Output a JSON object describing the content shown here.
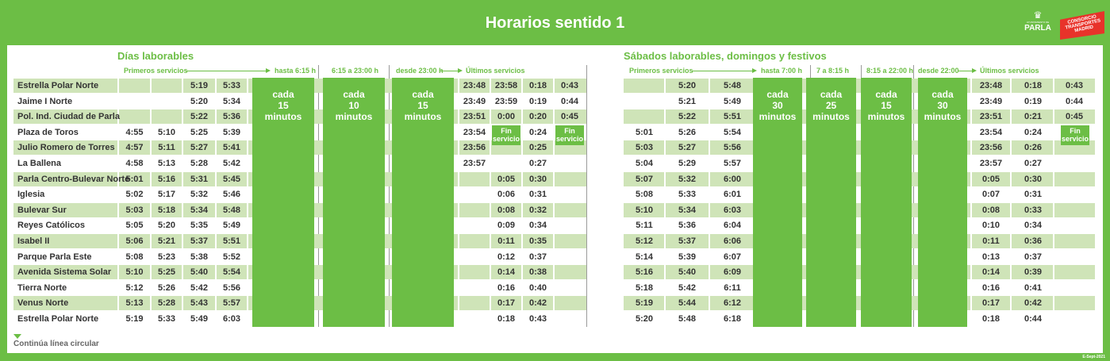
{
  "title": "Horarios sentido 1",
  "logos": {
    "parla_sub": "AYUNTAMIENTO DE",
    "parla_name": "PARLA",
    "ct_text": "CONSORCIO TRANSPORTES MADRID"
  },
  "stops": [
    "Estrella Polar Norte",
    "Jaime I Norte",
    "Pol. Ind. Ciudad de Parla",
    "Plaza de Toros",
    "Julio Romero de Torres",
    "La Ballena",
    "Parla Centro-Bulevar Norte",
    "Iglesia",
    "Bulevar Sur",
    "Reyes Católicos",
    "Isabel II",
    "Parque Parla Este",
    "Avenida Sistema Solar",
    "Tierra Norte",
    "Venus Norte",
    "Estrella Polar Norte"
  ],
  "weekday": {
    "heading": "Días laborables",
    "headers": {
      "first": "Primeros servicios",
      "until": "hasta 6:15 h",
      "mid": "6:15 a 23:00 h",
      "from": "desde 23:00 h",
      "last": "Últimos servicios"
    },
    "freq": [
      {
        "l1": "cada",
        "l2": "15",
        "l3": "minutos"
      },
      {
        "l1": "cada",
        "l2": "10",
        "l3": "minutos"
      },
      {
        "l1": "cada",
        "l2": "15",
        "l3": "minutos"
      }
    ],
    "first": [
      [
        "",
        "",
        "5:19",
        "5:33"
      ],
      [
        "",
        "",
        "5:20",
        "5:34"
      ],
      [
        "",
        "",
        "5:22",
        "5:36"
      ],
      [
        "4:55",
        "5:10",
        "5:25",
        "5:39"
      ],
      [
        "4:57",
        "5:11",
        "5:27",
        "5:41"
      ],
      [
        "4:58",
        "5:13",
        "5:28",
        "5:42"
      ],
      [
        "5:01",
        "5:16",
        "5:31",
        "5:45"
      ],
      [
        "5:02",
        "5:17",
        "5:32",
        "5:46"
      ],
      [
        "5:03",
        "5:18",
        "5:34",
        "5:48"
      ],
      [
        "5:05",
        "5:20",
        "5:35",
        "5:49"
      ],
      [
        "5:06",
        "5:21",
        "5:37",
        "5:51"
      ],
      [
        "5:08",
        "5:23",
        "5:38",
        "5:52"
      ],
      [
        "5:10",
        "5:25",
        "5:40",
        "5:54"
      ],
      [
        "5:12",
        "5:26",
        "5:42",
        "5:56"
      ],
      [
        "5:13",
        "5:28",
        "5:43",
        "5:57"
      ],
      [
        "5:19",
        "5:33",
        "5:49",
        "6:03"
      ]
    ],
    "last": [
      [
        "23:48",
        "23:58",
        "0:18",
        "0:43"
      ],
      [
        "23:49",
        "23:59",
        "0:19",
        "0:44"
      ],
      [
        "23:51",
        "0:00",
        "0:20",
        "0:45"
      ],
      [
        "23:54",
        "",
        "0:24",
        ""
      ],
      [
        "23:56",
        "",
        "0:25",
        ""
      ],
      [
        "23:57",
        "",
        "0:27",
        ""
      ],
      [
        "",
        "0:05",
        "0:30",
        ""
      ],
      [
        "",
        "0:06",
        "0:31",
        ""
      ],
      [
        "",
        "0:08",
        "0:32",
        ""
      ],
      [
        "",
        "0:09",
        "0:34",
        ""
      ],
      [
        "",
        "0:11",
        "0:35",
        ""
      ],
      [
        "",
        "0:12",
        "0:37",
        ""
      ],
      [
        "",
        "0:14",
        "0:38",
        ""
      ],
      [
        "",
        "0:16",
        "0:40",
        ""
      ],
      [
        "",
        "0:17",
        "0:42",
        ""
      ],
      [
        "",
        "0:18",
        "0:43",
        ""
      ]
    ],
    "fin": {
      "l1": "Fin",
      "l2": "servicio"
    }
  },
  "weekend": {
    "heading": "Sábados laborables, domingos y festivos",
    "headers": {
      "first": "Primeros servicios",
      "until": "hasta 7:00 h",
      "h2": "7 a 8:15 h",
      "h3": "8:15 a 22:00 h",
      "from": "desde 22:00",
      "last": "Últimos servicios"
    },
    "freq": [
      {
        "l1": "cada",
        "l2": "30",
        "l3": "minutos"
      },
      {
        "l1": "cada",
        "l2": "25",
        "l3": "minutos"
      },
      {
        "l1": "cada",
        "l2": "15",
        "l3": "minutos"
      },
      {
        "l1": "cada",
        "l2": "30",
        "l3": "minutos"
      }
    ],
    "first": [
      [
        "",
        "5:20",
        "5:48"
      ],
      [
        "",
        "5:21",
        "5:49"
      ],
      [
        "",
        "5:22",
        "5:51"
      ],
      [
        "5:01",
        "5:26",
        "5:54"
      ],
      [
        "5:03",
        "5:27",
        "5:56"
      ],
      [
        "5:04",
        "5:29",
        "5:57"
      ],
      [
        "5:07",
        "5:32",
        "6:00"
      ],
      [
        "5:08",
        "5:33",
        "6:01"
      ],
      [
        "5:10",
        "5:34",
        "6:03"
      ],
      [
        "5:11",
        "5:36",
        "6:04"
      ],
      [
        "5:12",
        "5:37",
        "6:06"
      ],
      [
        "5:14",
        "5:39",
        "6:07"
      ],
      [
        "5:16",
        "5:40",
        "6:09"
      ],
      [
        "5:18",
        "5:42",
        "6:11"
      ],
      [
        "5:19",
        "5:44",
        "6:12"
      ],
      [
        "5:20",
        "5:48",
        "6:18"
      ]
    ],
    "last": [
      [
        "23:48",
        "0:18",
        "0:43"
      ],
      [
        "23:49",
        "0:19",
        "0:44"
      ],
      [
        "23:51",
        "0:21",
        "0:45"
      ],
      [
        "23:54",
        "0:24",
        ""
      ],
      [
        "23:56",
        "0:26",
        ""
      ],
      [
        "23:57",
        "0:27",
        ""
      ],
      [
        "0:05",
        "0:30",
        ""
      ],
      [
        "0:07",
        "0:31",
        ""
      ],
      [
        "0:08",
        "0:33",
        ""
      ],
      [
        "0:10",
        "0:34",
        ""
      ],
      [
        "0:11",
        "0:36",
        ""
      ],
      [
        "0:13",
        "0:37",
        ""
      ],
      [
        "0:14",
        "0:39",
        ""
      ],
      [
        "0:16",
        "0:41",
        ""
      ],
      [
        "0:17",
        "0:42",
        ""
      ],
      [
        "0:18",
        "0:44",
        ""
      ]
    ],
    "fin": {
      "l1": "Fin",
      "l2": "servicio"
    }
  },
  "footer": "Continúa línea circular",
  "date": "E-Sept-2021"
}
